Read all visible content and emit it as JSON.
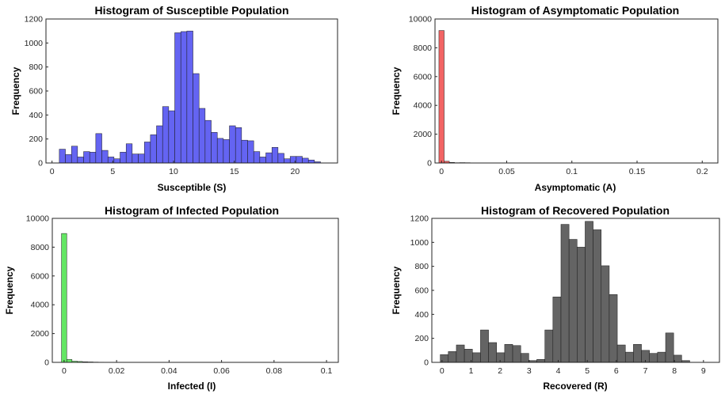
{
  "chart_data": [
    {
      "type": "bar",
      "title": "Histogram of Susceptible Population",
      "xlabel": "Susceptible (S)",
      "ylabel": "Frequency",
      "xlim": [
        -0.5,
        23.5
      ],
      "ylim": [
        0,
        1200
      ],
      "xticks": [
        "0",
        "5",
        "10",
        "15",
        "20"
      ],
      "xtick_values": [
        0,
        5,
        10,
        15,
        20
      ],
      "yticks": [
        "0",
        "200",
        "400",
        "600",
        "800",
        "1000",
        "1200"
      ],
      "ytick_values": [
        0,
        200,
        400,
        600,
        800,
        1000,
        1200
      ],
      "bin_start": 0.6,
      "bin_width": 0.5,
      "color": "#6464f2",
      "values": [
        115,
        70,
        140,
        50,
        95,
        90,
        245,
        105,
        50,
        35,
        90,
        160,
        75,
        75,
        175,
        235,
        310,
        470,
        435,
        1085,
        1095,
        1100,
        745,
        455,
        355,
        255,
        205,
        195,
        310,
        295,
        190,
        185,
        95,
        50,
        85,
        130,
        80,
        35,
        55,
        55,
        40,
        25,
        10
      ]
    },
    {
      "type": "bar",
      "title": "Histogram of Asymptomatic Population",
      "xlabel": "Asymptomatic (A)",
      "ylabel": "Frequency",
      "xlim": [
        -0.005,
        0.212
      ],
      "ylim": [
        0,
        10000
      ],
      "xticks": [
        "0",
        "0.05",
        "0.1",
        "0.15",
        "0.2"
      ],
      "xtick_values": [
        0,
        0.05,
        0.1,
        0.15,
        0.2
      ],
      "yticks": [
        "0",
        "2000",
        "4000",
        "6000",
        "8000",
        "10000"
      ],
      "ytick_values": [
        0,
        2000,
        4000,
        6000,
        8000,
        10000
      ],
      "bin_start": -0.002,
      "bin_width": 0.004,
      "color": "#f26464",
      "values": [
        9200,
        120,
        40,
        20,
        25,
        20,
        10,
        5,
        5,
        5,
        5,
        3,
        3,
        2,
        2,
        2,
        1,
        1,
        1,
        1,
        1,
        1,
        1,
        1,
        1,
        1,
        0,
        0,
        0,
        0,
        0,
        0,
        0,
        0,
        0,
        0,
        0,
        0,
        0,
        0,
        0,
        0,
        0,
        0,
        0,
        0,
        0,
        0,
        0,
        0,
        0,
        0,
        0
      ]
    },
    {
      "type": "bar",
      "title": "Histogram of Infected Population",
      "xlabel": "Infected (I)",
      "ylabel": "Frequency",
      "xlim": [
        -0.0045,
        0.1045
      ],
      "ylim": [
        0,
        10000
      ],
      "xticks": [
        "0",
        "0.02",
        "0.04",
        "0.06",
        "0.08",
        "0.1"
      ],
      "xtick_values": [
        0,
        0.02,
        0.04,
        0.06,
        0.08,
        0.1
      ],
      "yticks": [
        "0",
        "2000",
        "4000",
        "6000",
        "8000",
        "10000"
      ],
      "ytick_values": [
        0,
        2000,
        4000,
        6000,
        8000,
        10000
      ],
      "bin_start": -0.001,
      "bin_width": 0.002,
      "color": "#64e664",
      "values": [
        8950,
        200,
        80,
        60,
        40,
        30,
        20,
        15,
        10,
        8,
        6,
        5,
        5,
        4,
        3,
        3,
        2,
        2,
        2,
        1,
        1,
        1,
        1,
        1,
        1,
        1,
        1,
        1,
        1,
        1,
        1,
        0,
        0,
        0,
        0,
        0,
        0,
        0,
        0,
        0,
        0,
        0,
        0,
        0,
        0,
        0,
        0,
        0,
        0,
        0,
        0,
        0
      ]
    },
    {
      "type": "bar",
      "title": "Histogram of Recovered Population",
      "xlabel": "Recovered (R)",
      "ylabel": "Frequency",
      "xlim": [
        -0.35,
        9.55
      ],
      "ylim": [
        0,
        1200
      ],
      "xticks": [
        "0",
        "1",
        "2",
        "3",
        "4",
        "5",
        "6",
        "7",
        "8",
        "9"
      ],
      "xtick_values": [
        0,
        1,
        2,
        3,
        4,
        5,
        6,
        7,
        8,
        9
      ],
      "yticks": [
        "0",
        "200",
        "400",
        "600",
        "800",
        "1000",
        "1200"
      ],
      "ytick_values": [
        0,
        200,
        400,
        600,
        800,
        1000,
        1200
      ],
      "bin_start": -0.06,
      "bin_width": 0.277,
      "color": "#646464",
      "values": [
        65,
        90,
        145,
        110,
        80,
        270,
        165,
        80,
        150,
        140,
        75,
        15,
        25,
        270,
        545,
        1150,
        1025,
        960,
        1175,
        1105,
        805,
        565,
        145,
        85,
        150,
        100,
        75,
        85,
        245,
        60,
        15
      ]
    }
  ]
}
